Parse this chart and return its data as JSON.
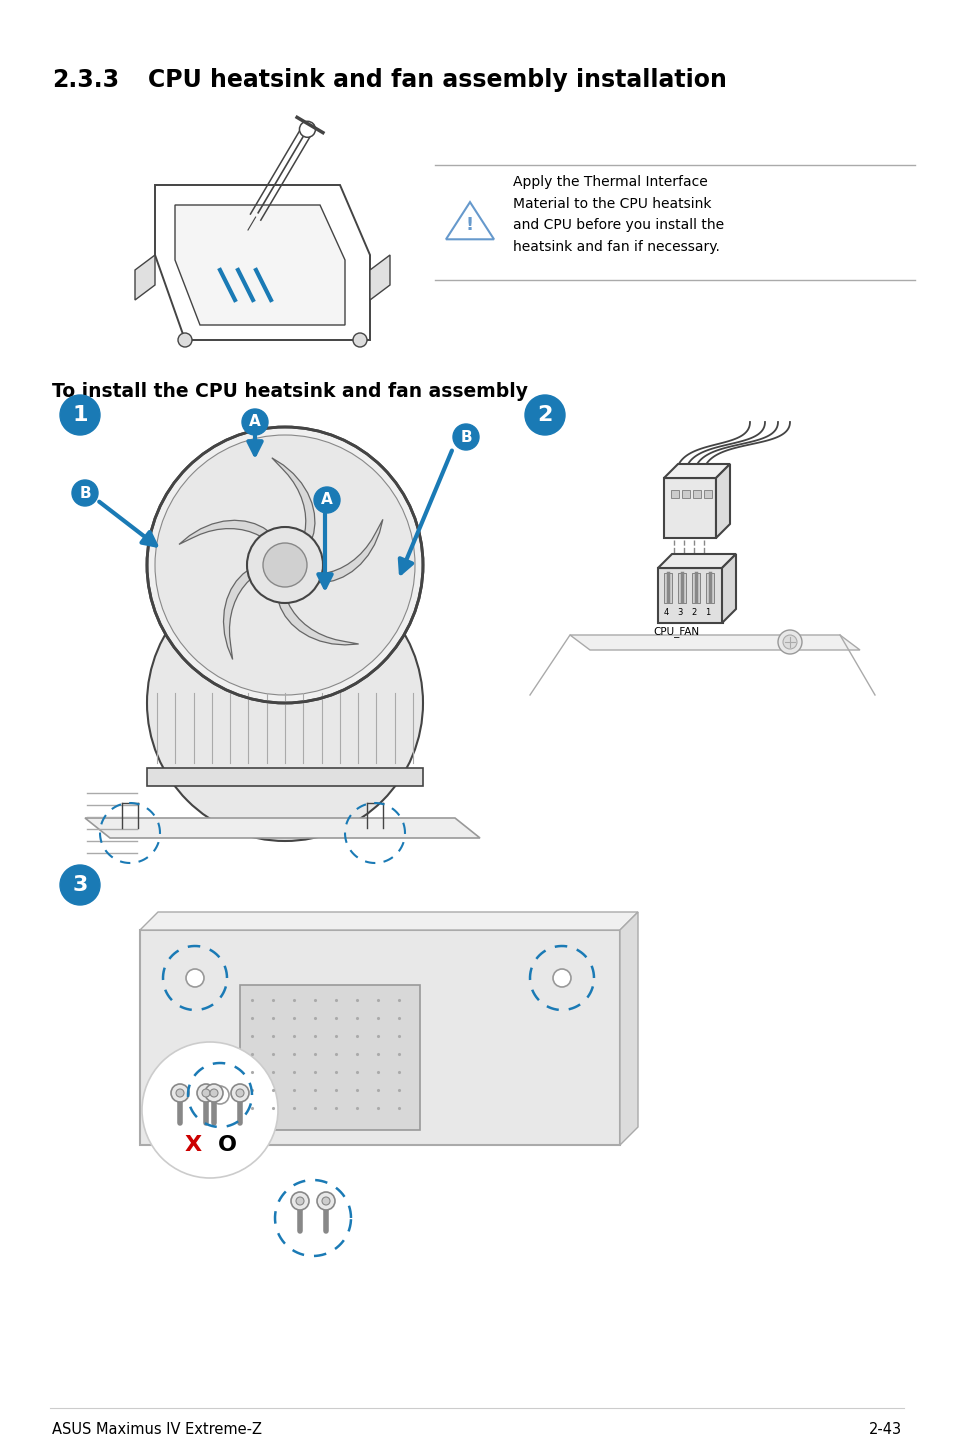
{
  "title_number": "2.3.3",
  "title_text": "CPU heatsink and fan assembly installation",
  "subtitle": "To install the CPU heatsink and fan assembly",
  "warning_text": "Apply the Thermal Interface\nMaterial to the CPU heatsink\nand CPU before you install the\nheatsink and fan if necessary.",
  "footer_left": "ASUS Maximus IV Extreme-Z",
  "footer_right": "2-43",
  "bg_color": "#ffffff",
  "text_color": "#000000",
  "blue_color": "#1a7ab5",
  "red_color": "#cc0000",
  "step_circle_color": "#1a7ab5",
  "step_text_color": "#ffffff",
  "label_circle_color": "#1a7ab5",
  "line_color": "#444444",
  "light_gray": "#cccccc",
  "mid_gray": "#999999",
  "dashed_circle_color": "#1a7ab5"
}
